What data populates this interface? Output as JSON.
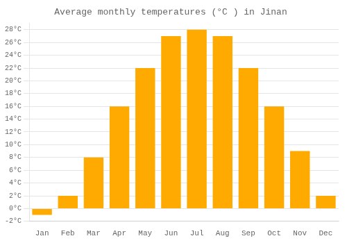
{
  "chart_data": {
    "type": "bar",
    "title": "Average monthly temperatures (°C ) in Jinan",
    "categories": [
      "Jan",
      "Feb",
      "Mar",
      "Apr",
      "May",
      "Jun",
      "Jul",
      "Aug",
      "Sep",
      "Oct",
      "Nov",
      "Dec"
    ],
    "values": [
      -1,
      2,
      8,
      16,
      22,
      27,
      28,
      27,
      22,
      16,
      9,
      2
    ],
    "color": "#FFAA00",
    "ylim": [
      -2,
      29
    ],
    "yticks": [
      {
        "value": -2,
        "label": "-2°C"
      },
      {
        "value": 0,
        "label": "0°C"
      },
      {
        "value": 2,
        "label": "2°C"
      },
      {
        "value": 4,
        "label": "4°C"
      },
      {
        "value": 6,
        "label": "6°C"
      },
      {
        "value": 8,
        "label": "8°C"
      },
      {
        "value": 10,
        "label": "10°C"
      },
      {
        "value": 12,
        "label": "12°C"
      },
      {
        "value": 14,
        "label": "14°C"
      },
      {
        "value": 16,
        "label": "16°C"
      },
      {
        "value": 18,
        "label": "18°C"
      },
      {
        "value": 20,
        "label": "20°C"
      },
      {
        "value": 22,
        "label": "22°C"
      },
      {
        "value": 24,
        "label": "24°C"
      },
      {
        "value": 26,
        "label": "26°C"
      },
      {
        "value": 28,
        "label": "28°C"
      }
    ],
    "grid": true
  }
}
